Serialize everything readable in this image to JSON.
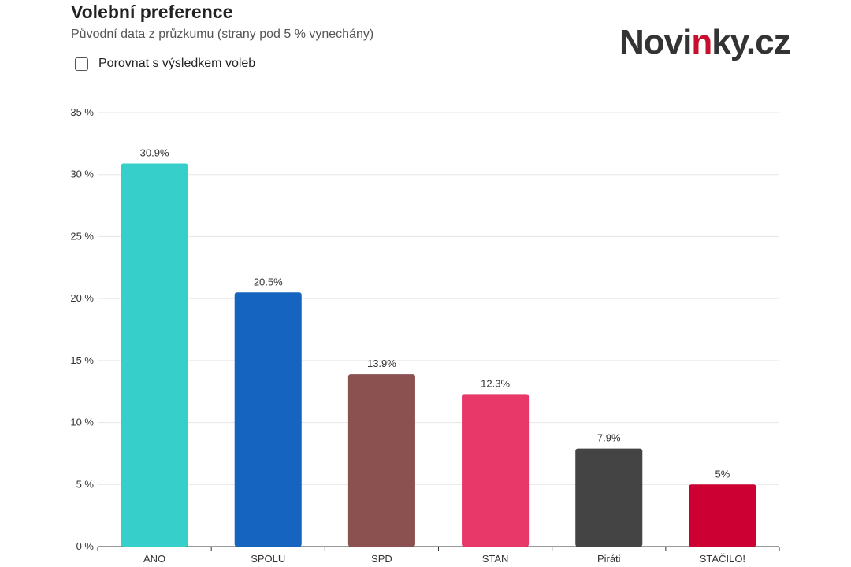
{
  "header": {
    "title": "Volební preference",
    "subtitle": "Původní data z průzkumu (strany pod 5 % vynechány)"
  },
  "logo": {
    "part1": "Novi",
    "accent": "n",
    "part2": "ky.cz",
    "accent_color": "#c8102e"
  },
  "compare_toggle": {
    "label": "Porovnat s výsledkem voleb",
    "checked": false
  },
  "chart_data": {
    "type": "bar",
    "title": "Volební preference",
    "subtitle": "Původní data z průzkumu (strany pod 5 % vynechány)",
    "xlabel": "",
    "ylabel": "",
    "ylim": [
      0,
      35
    ],
    "yticks": [
      0,
      5,
      10,
      15,
      20,
      25,
      30,
      35
    ],
    "ytick_labels": [
      "0 %",
      "5 %",
      "10 %",
      "15 %",
      "20 %",
      "25 %",
      "30 %",
      "35 %"
    ],
    "grid": true,
    "legend": "none",
    "categories": [
      "ANO",
      "SPOLU",
      "SPD",
      "STAN",
      "Piráti",
      "STAČILO!"
    ],
    "values": [
      30.9,
      20.5,
      13.9,
      12.3,
      7.9,
      5
    ],
    "value_labels": [
      "30.9%",
      "20.5%",
      "13.9%",
      "12.3%",
      "7.9%",
      "5%"
    ],
    "colors": [
      "#36cfc9",
      "#1565c0",
      "#8b5050",
      "#e8386a",
      "#444444",
      "#cc0033"
    ]
  }
}
